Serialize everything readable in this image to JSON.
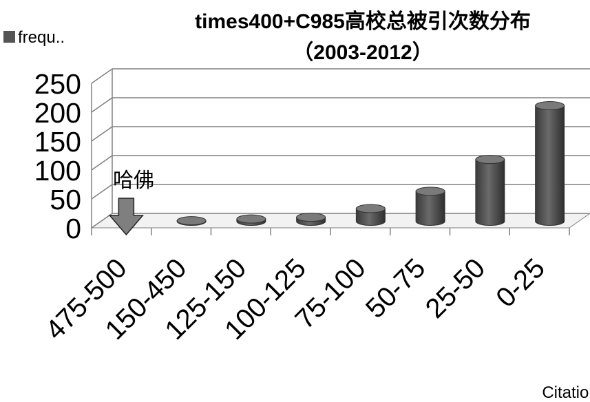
{
  "chart_data": {
    "type": "bar",
    "title": "times400+C985高校总被引次数分布",
    "subtitle": "（2003-2012）",
    "xlabel": "Citation",
    "ylabel": "",
    "categories": [
      "475-500",
      "150-450",
      "125-150",
      "100-125",
      "75-100",
      "50-75",
      "25-50",
      "0-25"
    ],
    "series": [
      {
        "name": "frequ..",
        "values": [
          0,
          1,
          4,
          7,
          22,
          52,
          107,
          200
        ]
      }
    ],
    "ylim": [
      0,
      250
    ],
    "yticks": [
      "0",
      "50",
      "100",
      "150",
      "200",
      "250"
    ],
    "grid": true,
    "legend": "top-left",
    "annotation": {
      "text": "哈佛",
      "target_category": "475-500"
    },
    "colors": {
      "bar": "#555555",
      "arrow": "#7f7f7f",
      "grid": "#808080"
    }
  }
}
